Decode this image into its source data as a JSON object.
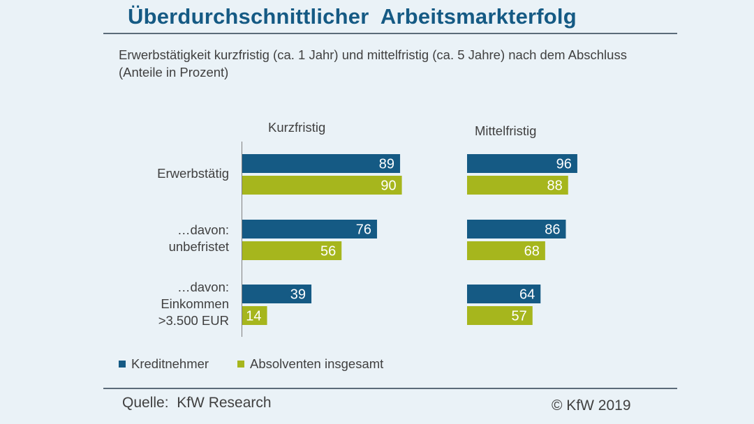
{
  "title": "Überdurchschnittlicher  Arbeitsmarkterfolg",
  "subtitle": "Erwerbstätigkeit kurzfristig (ca. 1 Jahr) und mittelfristig (ca. 5 Jahre) nach dem Abschluss (Anteile in Prozent)",
  "footer": {
    "source": "Quelle:  KfW Research",
    "copyright": "© KfW 2019"
  },
  "colors": {
    "kreditnehmer": "#155a84",
    "absolventen": "#a6b61d"
  },
  "chart_data": {
    "type": "bar",
    "orientation": "horizontal",
    "panels": [
      "Kurzfristig",
      "Mittelfristig"
    ],
    "categories": [
      [
        "Erwerbstätig"
      ],
      [
        "…davon:",
        "unbefristet"
      ],
      [
        "…davon:",
        "Einkommen",
        ">3.500 EUR"
      ]
    ],
    "series": [
      {
        "name": "Kreditnehmer",
        "kurzfristig": [
          89,
          76,
          39
        ],
        "mittelfristig": [
          96,
          86,
          64
        ]
      },
      {
        "name": "Absolventen insgesamt",
        "kurzfristig": [
          90,
          56,
          14
        ],
        "mittelfristig": [
          88,
          68,
          57
        ]
      }
    ],
    "xlim": [
      0,
      100
    ],
    "legend": "bottom-left",
    "grid": false
  }
}
